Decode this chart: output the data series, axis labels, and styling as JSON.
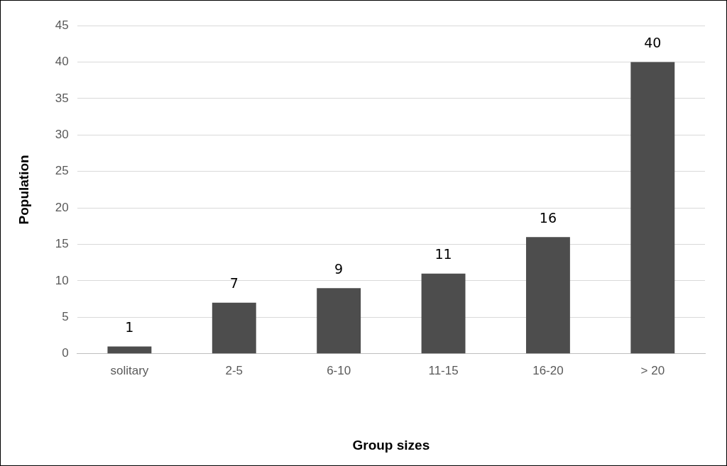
{
  "chart_data": {
    "type": "bar",
    "xlabel": "Group sizes",
    "ylabel": "Population",
    "categories": [
      "solitary",
      "2-5",
      "6-10",
      "11-15",
      "16-20",
      "> 20"
    ],
    "values": [
      1,
      7,
      9,
      11,
      16,
      40
    ],
    "color": "#4d4d4d",
    "ylim": [
      0,
      45
    ],
    "yticks": [
      0,
      5,
      10,
      15,
      20,
      25,
      30,
      35,
      40,
      45
    ],
    "grid": "y",
    "data_labels": true
  }
}
